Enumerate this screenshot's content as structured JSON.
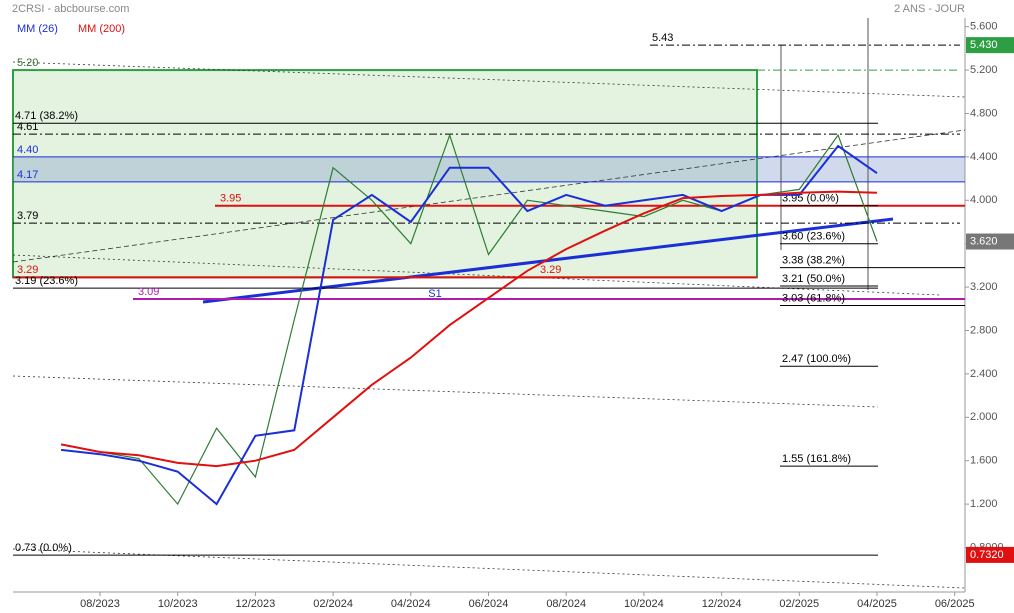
{
  "chart_data": {
    "type": "line",
    "title": "2CRSI - abcbourse.com",
    "subtitle": "2 ANS - JOUR",
    "x": [
      "07/2023",
      "08/2023",
      "09/2023",
      "10/2023",
      "11/2023",
      "12/2023",
      "01/2024",
      "02/2024",
      "03/2024",
      "04/2024",
      "05/2024",
      "06/2024",
      "07/2024",
      "08/2024",
      "09/2024",
      "10/2024",
      "11/2024",
      "12/2024",
      "01/2025",
      "02/2025",
      "03/2025",
      "04/2025"
    ],
    "series": [
      {
        "color": "#2e7d32",
        "values": [
          1.75,
          1.68,
          1.62,
          1.2,
          1.9,
          1.45,
          2.9,
          4.3,
          4.0,
          3.6,
          4.6,
          3.5,
          4.0,
          3.95,
          3.9,
          3.85,
          4.0,
          3.9,
          4.05,
          4.1,
          4.6,
          3.62
        ]
      },
      {
        "name": "MM (26)",
        "color": "#1a2fd6",
        "values": [
          1.7,
          1.66,
          1.6,
          1.5,
          1.2,
          1.83,
          1.88,
          3.82,
          4.05,
          3.8,
          4.3,
          4.3,
          3.9,
          4.05,
          3.95,
          4.0,
          4.05,
          3.9,
          4.05,
          4.05,
          4.5,
          4.25
        ]
      },
      {
        "name": "MM (200)",
        "color": "#e01010",
        "values": [
          1.75,
          1.68,
          1.65,
          1.58,
          1.55,
          1.6,
          1.7,
          2.0,
          2.3,
          2.55,
          2.85,
          3.1,
          3.35,
          3.55,
          3.72,
          3.88,
          4.02,
          4.04,
          4.05,
          4.07,
          4.08,
          4.07
        ]
      }
    ],
    "xticks": [
      "08/2023",
      "10/2023",
      "12/2023",
      "02/2024",
      "04/2024",
      "06/2024",
      "08/2024",
      "10/2024",
      "12/2024",
      "02/2025",
      "04/2025",
      "06/2025"
    ],
    "ylim": [
      0.39,
      5.68
    ],
    "yticks": [
      {
        "value": 0.8,
        "label": "0.8000"
      },
      {
        "value": 1.2,
        "label": "1.200"
      },
      {
        "value": 1.6,
        "label": "1.600"
      },
      {
        "value": 2,
        "label": "2.000"
      },
      {
        "value": 2.4,
        "label": "2.400"
      },
      {
        "value": 2.8,
        "label": "2.800"
      },
      {
        "value": 3.2,
        "label": "3.200"
      },
      {
        "value": 3.6,
        "label": "3.600"
      },
      {
        "value": 4,
        "label": "4.000"
      },
      {
        "value": 4.4,
        "label": "4.400"
      },
      {
        "value": 4.8,
        "label": "4.800"
      },
      {
        "value": 5.2,
        "label": "5.200"
      },
      {
        "value": 5.6,
        "label": "5.600"
      }
    ],
    "levels": [
      {
        "value": 5.43,
        "label": "5.43",
        "color": "#000000",
        "style": "dashdot"
      },
      {
        "value": 5.2,
        "label": "5.20",
        "color": "#2e9e44",
        "style": "dashdot"
      },
      {
        "value": 4.71,
        "label": "4.71 (38.2%)",
        "color": "#000000",
        "style": "solid"
      },
      {
        "value": 4.61,
        "label": "4.61",
        "color": "#000000",
        "style": "dashdot"
      },
      {
        "value": 4.4,
        "label": "4.40",
        "color": "#1a2fd6",
        "style": "solid"
      },
      {
        "value": 4.17,
        "label": "4.17",
        "color": "#1a2fd6",
        "style": "solid"
      },
      {
        "value": 3.95,
        "label": "3.95",
        "color": "#e01010",
        "style": "solid"
      },
      {
        "value": 3.79,
        "label": "3.79",
        "color": "#000000",
        "style": "dashdot"
      },
      {
        "value": 3.29,
        "label": "3.29",
        "color": "#e01010",
        "style": "solid"
      },
      {
        "value": 3.29,
        "label": "3.29",
        "color": "#e01010",
        "style": "none"
      },
      {
        "value": 3.19,
        "label": "3.19 (23.6%)",
        "color": "#000000",
        "style": "solid"
      },
      {
        "value": 3.09,
        "label": "3.09",
        "color": "#b01cb0",
        "style": "solid"
      },
      {
        "value": 3.95,
        "label": "3.95 (0.0%)",
        "color": "#000000",
        "style": "solid"
      },
      {
        "value": 3.6,
        "label": "3.60 (23.6%)",
        "color": "#000000",
        "style": "solid"
      },
      {
        "value": 3.38,
        "label": "3.38 (38.2%)",
        "color": "#000000",
        "style": "solid"
      },
      {
        "value": 3.21,
        "label": "3.21 (50.0%)",
        "color": "#000000",
        "style": "solid"
      },
      {
        "value": 3.03,
        "label": "3.03 (61.8%)",
        "color": "#000000",
        "style": "solid"
      },
      {
        "value": 2.47,
        "label": "2.47 (100.0%)",
        "color": "#000000",
        "style": "solid"
      },
      {
        "value": 1.55,
        "label": "1.55 (161.8%)",
        "color": "#000000",
        "style": "solid"
      },
      {
        "value": 0.73,
        "label": "0.73 (0.0%)",
        "color": "#000000",
        "style": "solid"
      }
    ],
    "badges": [
      {
        "value": 5.43,
        "label": "5.430",
        "color": "#2e9e44"
      },
      {
        "value": 3.62,
        "label": "3.620",
        "color": "#777777"
      },
      {
        "value": 0.732,
        "label": "0.7320",
        "color": "#e01010"
      }
    ],
    "annotations": [
      "S1"
    ]
  }
}
